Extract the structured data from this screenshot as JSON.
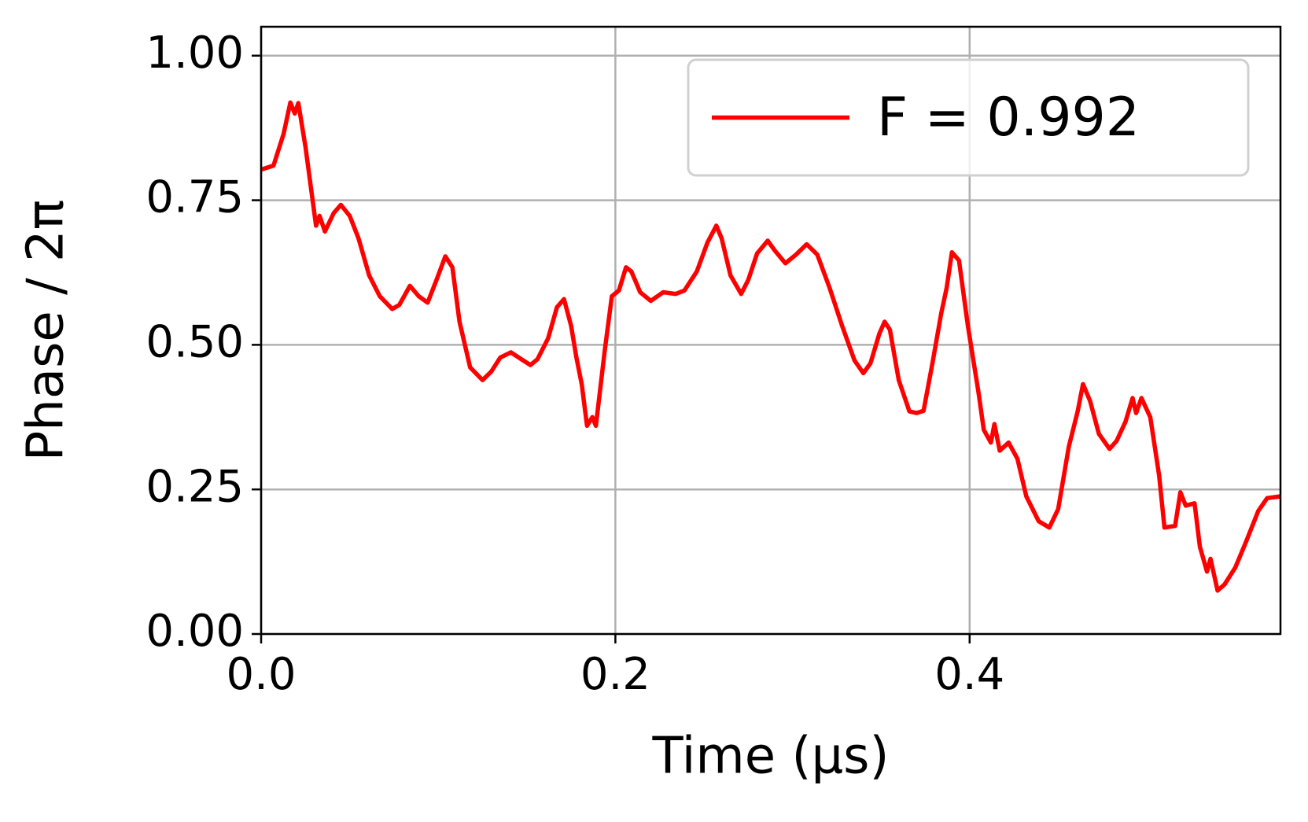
{
  "chart_data": {
    "type": "line",
    "x_label": "Time (µs)",
    "y_label": "Phase / 2π",
    "xlim": [
      0,
      0.5755
    ],
    "ylim": [
      0,
      1.05
    ],
    "xticks": [
      {
        "value": 0,
        "label": "0.0"
      },
      0.2,
      0.4
    ],
    "yticks": [
      {
        "value": 0,
        "label": "0.00"
      },
      {
        "value": 0.25,
        "label": "0.25"
      },
      {
        "value": 0.5,
        "label": "0.50"
      },
      {
        "value": 0.75,
        "label": "0.75"
      },
      {
        "value": 1,
        "label": "1.00"
      }
    ],
    "grid": true,
    "legend": "upper right",
    "x": [
      0,
      0.007,
      0.0127,
      0.0165,
      0.019,
      0.021,
      0.025,
      0.031,
      0.033,
      0.036,
      0.041,
      0.045,
      0.05,
      0.055,
      0.061,
      0.067,
      0.074,
      0.078,
      0.084,
      0.089,
      0.094,
      0.099,
      0.104,
      0.108,
      0.112,
      0.118,
      0.125,
      0.13,
      0.135,
      0.141,
      0.147,
      0.152,
      0.156,
      0.162,
      0.167,
      0.171,
      0.175,
      0.178,
      0.181,
      0.184,
      0.187,
      0.189,
      0.194,
      0.198,
      0.202,
      0.206,
      0.209,
      0.214,
      0.22,
      0.227,
      0.234,
      0.239,
      0.246,
      0.252,
      0.257,
      0.26,
      0.265,
      0.271,
      0.275,
      0.28,
      0.286,
      0.29,
      0.296,
      0.302,
      0.308,
      0.314,
      0.321,
      0.328,
      0.335,
      0.34,
      0.344,
      0.349,
      0.352,
      0.355,
      0.36,
      0.366,
      0.37,
      0.374,
      0.379,
      0.384,
      0.387,
      0.39,
      0.394,
      0.399,
      0.405,
      0.408,
      0.412,
      0.414,
      0.417,
      0.422,
      0.427,
      0.432,
      0.439,
      0.445,
      0.45,
      0.456,
      0.461,
      0.464,
      0.468,
      0.473,
      0.479,
      0.483,
      0.488,
      0.492,
      0.494,
      0.497,
      0.502,
      0.507,
      0.51,
      0.516,
      0.519,
      0.522,
      0.527,
      0.53,
      0.534,
      0.536,
      0.54,
      0.544,
      0.55,
      0.556,
      0.563,
      0.568,
      0.5755
    ],
    "series": [
      {
        "name": "F = 0.992",
        "color": "#ff0000",
        "values": [
          0.803,
          0.81,
          0.865,
          0.919,
          0.9,
          0.918,
          0.843,
          0.706,
          0.723,
          0.696,
          0.728,
          0.742,
          0.723,
          0.684,
          0.62,
          0.584,
          0.562,
          0.569,
          0.602,
          0.584,
          0.573,
          0.612,
          0.653,
          0.634,
          0.54,
          0.461,
          0.439,
          0.454,
          0.478,
          0.487,
          0.475,
          0.465,
          0.475,
          0.511,
          0.565,
          0.579,
          0.533,
          0.478,
          0.432,
          0.36,
          0.375,
          0.36,
          0.49,
          0.584,
          0.594,
          0.634,
          0.627,
          0.591,
          0.576,
          0.591,
          0.588,
          0.594,
          0.627,
          0.677,
          0.706,
          0.684,
          0.62,
          0.588,
          0.612,
          0.658,
          0.68,
          0.663,
          0.641,
          0.656,
          0.674,
          0.656,
          0.598,
          0.533,
          0.473,
          0.451,
          0.468,
          0.519,
          0.54,
          0.526,
          0.439,
          0.385,
          0.382,
          0.386,
          0.468,
          0.555,
          0.598,
          0.66,
          0.646,
          0.533,
          0.418,
          0.353,
          0.331,
          0.363,
          0.317,
          0.331,
          0.303,
          0.238,
          0.195,
          0.184,
          0.216,
          0.324,
          0.385,
          0.432,
          0.403,
          0.346,
          0.32,
          0.334,
          0.367,
          0.408,
          0.382,
          0.408,
          0.375,
          0.274,
          0.184,
          0.187,
          0.245,
          0.222,
          0.226,
          0.151,
          0.108,
          0.13,
          0.075,
          0.086,
          0.115,
          0.159,
          0.213,
          0.235,
          0.238
        ]
      }
    ]
  }
}
